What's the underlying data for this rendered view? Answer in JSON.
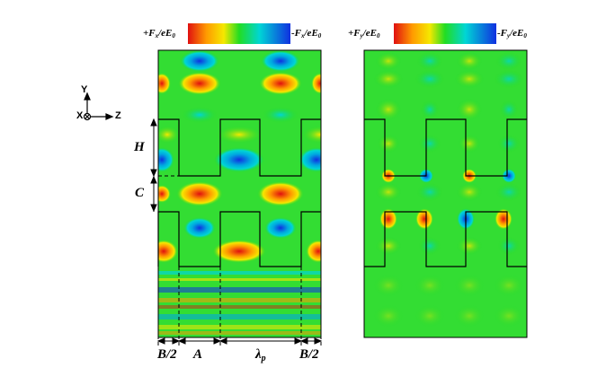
{
  "left_panel": {
    "colorbar": {
      "pos_label": "+F",
      "pos_sub": "x",
      "pos_tail": "/eE",
      "pos_tail_sub": "0",
      "neg_label": "-F",
      "neg_sub": "x",
      "neg_tail": "/eE",
      "neg_tail_sub": "0"
    },
    "dimension_labels": {
      "H": "H",
      "C": "C",
      "B2_left": "B/2",
      "A": "A",
      "lambda": "λ",
      "lambda_sub": "p",
      "B2_right": "B/2"
    }
  },
  "right_panel": {
    "colorbar": {
      "pos_label": "+F",
      "pos_sub": "y",
      "pos_tail": "/eE",
      "pos_tail_sub": "0",
      "neg_label": "-F",
      "neg_sub": "y",
      "neg_tail": "/eE",
      "neg_tail_sub": "0"
    }
  },
  "axes_icon": {
    "y": "Y",
    "x": "X",
    "z": "Z"
  },
  "colors": {
    "red": "#e01010",
    "orange": "#ff9a00",
    "yellow": "#f5e800",
    "green": "#22dd22",
    "cyan": "#00d5d5",
    "blue": "#1030e0"
  }
}
